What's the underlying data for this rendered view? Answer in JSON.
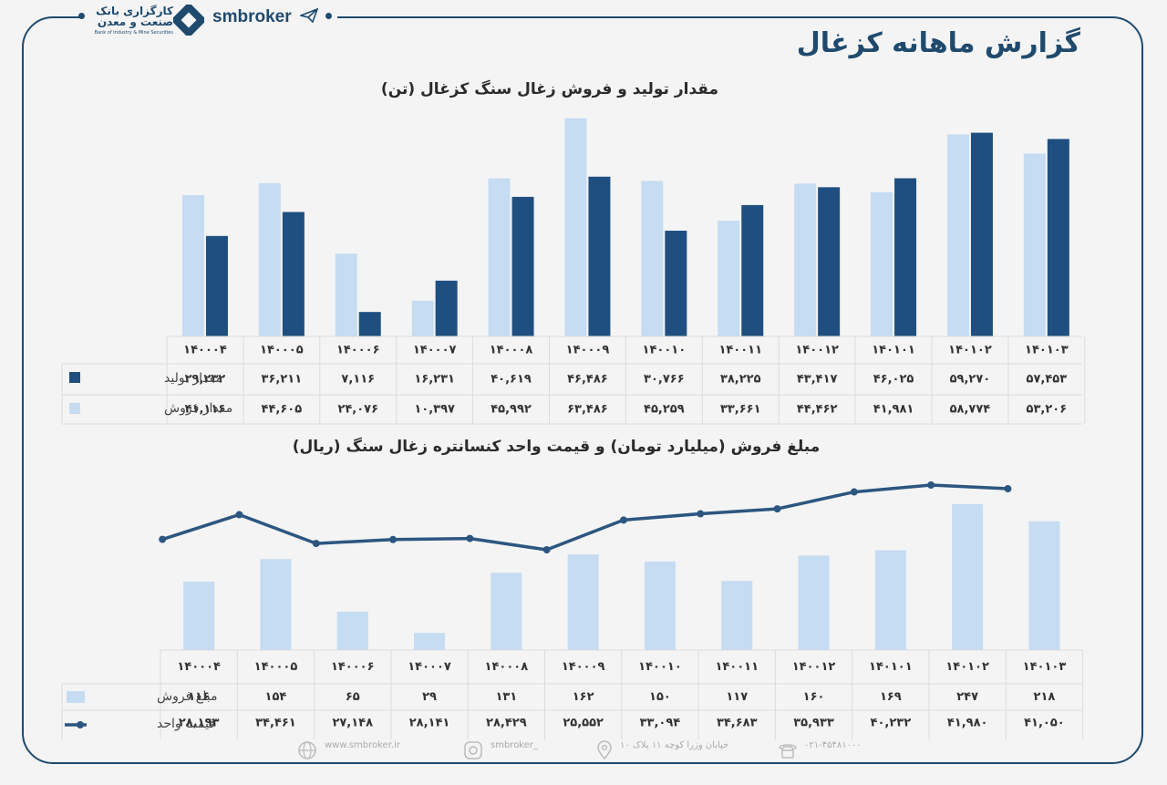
{
  "header": {
    "bank_name": "کارگزاری بانک صنعت و معدن",
    "bank_sub": "Bank of Industry & Mine Securities",
    "brand": "smbroker",
    "page_title": "گزارش ماهانه کزغال"
  },
  "colors": {
    "light": "#c5dcf2",
    "dark": "#1f4f80",
    "line": "#2c5680",
    "frame": "#1f4a6e"
  },
  "icons": [
    "logo-icon",
    "paper-plane-icon",
    "globe-icon",
    "instagram-icon",
    "location-pin-icon",
    "phone-icon"
  ],
  "footer": {
    "website": "www.smbroker.ir",
    "instagram": "smbroker_",
    "address": "خیابان وزرا کوچه ۱۱ پلاک ۱۰",
    "phone": "۰۲۱-۴۵۴۸۱۰۰۰"
  },
  "chart_data": [
    {
      "type": "bar",
      "title": "مقدار تولید و فروش زغال سنگ کزغال (تن)",
      "categories": [
        "۱۴۰۰۰۴",
        "۱۴۰۰۰۵",
        "۱۴۰۰۰۶",
        "۱۴۰۰۰۷",
        "۱۴۰۰۰۸",
        "۱۴۰۰۰۹",
        "۱۴۰۰۱۰",
        "۱۴۰۰۱۱",
        "۱۴۰۰۱۲",
        "۱۴۰۱۰۱",
        "۱۴۰۱۰۲",
        "۱۴۰۱۰۳"
      ],
      "series": [
        {
          "name": "مقدار تولید",
          "color": "#1f4f80",
          "values": [
            29232,
            36211,
            7116,
            16231,
            40619,
            46486,
            30766,
            38225,
            43417,
            46025,
            59270,
            57453
          ],
          "labels": [
            "۲۹,۲۳۲",
            "۳۶,۲۱۱",
            "۷,۱۱۶",
            "۱۶,۲۳۱",
            "۴۰,۶۱۹",
            "۴۶,۴۸۶",
            "۳۰,۷۶۶",
            "۳۸,۲۲۵",
            "۴۳,۴۱۷",
            "۴۶,۰۲۵",
            "۵۹,۲۷۰",
            "۵۷,۴۵۳"
          ]
        },
        {
          "name": "مقدار فروش",
          "color": "#c5dcf2",
          "values": [
            41116,
            44605,
            24076,
            10397,
            45992,
            63486,
            45259,
            33661,
            44462,
            41981,
            58774,
            53206
          ],
          "labels": [
            "۴۱,۱۱۶",
            "۴۴,۶۰۵",
            "۲۴,۰۷۶",
            "۱۰,۳۹۷",
            "۴۵,۹۹۲",
            "۶۳,۴۸۶",
            "۴۵,۲۵۹",
            "۳۳,۶۶۱",
            "۴۴,۴۶۲",
            "۴۱,۹۸۱",
            "۵۸,۷۷۴",
            "۵۳,۲۰۶"
          ]
        }
      ],
      "ylim": [
        0,
        65000
      ],
      "grid": false,
      "legend": "table-left"
    },
    {
      "type": "bar",
      "title": "مبلغ فروش (میلیارد تومان) و قیمت واحد کنسانتره زغال سنگ (ریال)",
      "categories": [
        "۱۴۰۰۰۴",
        "۱۴۰۰۰۵",
        "۱۴۰۰۰۶",
        "۱۴۰۰۰۷",
        "۱۴۰۰۰۸",
        "۱۴۰۰۰۹",
        "۱۴۰۰۱۰",
        "۱۴۰۰۱۱",
        "۱۴۰۰۱۲",
        "۱۴۰۱۰۱",
        "۱۴۰۱۰۲",
        "۱۴۰۱۰۳"
      ],
      "series": [
        {
          "name": "مبلغ فروش",
          "type": "bar",
          "color": "#c5dcf2",
          "values": [
            116,
            154,
            65,
            29,
            131,
            162,
            150,
            117,
            160,
            169,
            247,
            218
          ],
          "labels": [
            "۱۱۶",
            "۱۵۴",
            "۶۵",
            "۲۹",
            "۱۳۱",
            "۱۶۲",
            "۱۵۰",
            "۱۱۷",
            "۱۶۰",
            "۱۶۹",
            "۲۴۷",
            "۲۱۸"
          ]
        },
        {
          "name": "قیمت واحد",
          "type": "line",
          "color": "#2c5680",
          "values": [
            28193,
            34461,
            27148,
            28141,
            28429,
            25552,
            33094,
            34683,
            35933,
            40232,
            41980,
            41050
          ],
          "labels": [
            "۲۸,۱۹۳",
            "۳۴,۴۶۱",
            "۲۷,۱۴۸",
            "۲۸,۱۴۱",
            "۲۸,۴۲۹",
            "۲۵,۵۵۲",
            "۳۳,۰۹۴",
            "۳۴,۶۸۳",
            "۳۵,۹۳۳",
            "۴۰,۲۳۲",
            "۴۱,۹۸۰",
            "۴۱,۰۵۰"
          ]
        }
      ],
      "grid": false,
      "legend": "table-left"
    }
  ]
}
